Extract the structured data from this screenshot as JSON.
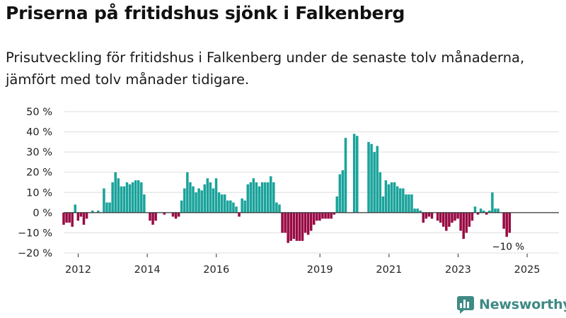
{
  "header": {
    "title": "Priserna på fritidshus sjönk i Falkenberg",
    "subtitle": "Prisutveckling för fritidshus i Falkenberg under de senaste tolv månaderna, jämfört med tolv månader tidigare."
  },
  "brand": {
    "name": "Newsworthy",
    "color": "#3f8a84"
  },
  "colors": {
    "positive": "#1aa39b",
    "negative": "#980a44",
    "grid": "#dddddd",
    "axis": "#333333"
  },
  "chart_data": {
    "type": "bar",
    "title": "Priserna på fritidshus sjönk i Falkenberg",
    "xlabel": "",
    "ylabel": "",
    "ylim": [
      -20,
      50
    ],
    "yticks": [
      -20,
      -10,
      0,
      10,
      20,
      30,
      40,
      50
    ],
    "ytick_labels": [
      "−20 %",
      "−10 %",
      "0 %",
      "10 %",
      "20 %",
      "30 %",
      "40 %",
      "50 %"
    ],
    "xtick_labels": [
      "2012",
      "2014",
      "2016",
      "2019",
      "2021",
      "2023",
      "2025"
    ],
    "xtick_positions": [
      2012.0,
      2014.0,
      2016.0,
      2019.0,
      2021.0,
      2023.0,
      2025.0
    ],
    "x_range": [
      2011.58,
      2025.92
    ],
    "start": 2011.58,
    "step": 0.0833,
    "values": [
      -6,
      -5,
      -5,
      -7,
      4,
      -4,
      -2,
      -6,
      -3,
      0,
      1,
      0,
      1,
      0,
      12,
      5,
      5,
      15,
      20,
      17,
      13,
      13,
      15,
      14,
      15,
      16,
      16,
      15,
      9,
      0,
      -4,
      -6,
      -4,
      0,
      0,
      -1,
      0,
      0,
      -2,
      -3,
      -2,
      6,
      12,
      20,
      15,
      13,
      10,
      12,
      11,
      14,
      17,
      15,
      12,
      17,
      10,
      9,
      9,
      6,
      6,
      5,
      3,
      -2,
      7,
      6,
      14,
      15,
      17,
      15,
      13,
      15,
      15,
      15,
      18,
      15,
      5,
      4,
      -10,
      -10,
      -15,
      -14,
      -13,
      -14,
      -14,
      -14,
      -10,
      -11,
      -9,
      -6,
      -4,
      -4,
      -3,
      -3,
      -3,
      -3,
      -1,
      8,
      19,
      21,
      37,
      0,
      0,
      39,
      38,
      0,
      0,
      0,
      35,
      34,
      30,
      33,
      20,
      8,
      16,
      14,
      15,
      15,
      13,
      12,
      12,
      9,
      9,
      9,
      2,
      2,
      1,
      -5,
      -3,
      -2,
      -3,
      0,
      -4,
      -5,
      -7,
      -9,
      -7,
      -5,
      -4,
      -3,
      -9,
      -13,
      -10,
      -7,
      -4,
      3,
      -1,
      2,
      1,
      -1,
      1,
      10,
      2,
      2,
      0,
      -8,
      -12,
      -10
    ],
    "annotations": [
      {
        "label": "−10 %",
        "at": "last"
      }
    ]
  }
}
